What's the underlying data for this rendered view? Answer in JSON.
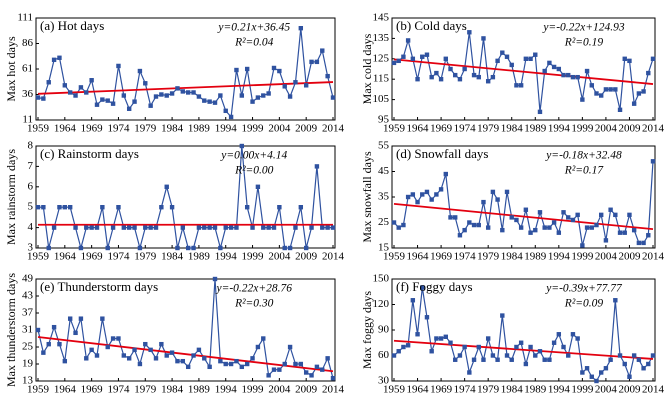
{
  "chart_data": [
    {
      "type": "line",
      "title": "(a) Hot days",
      "y_label": "Max hot days",
      "equation": "y=0.21x+36.45",
      "r2": "R²=0.04",
      "trend": {
        "slope": 0.21,
        "intercept": 36.45,
        "color": "#e3000f"
      },
      "color": "#2f52a0",
      "x": [
        1959,
        1960,
        1961,
        1962,
        1963,
        1964,
        1965,
        1966,
        1967,
        1968,
        1969,
        1970,
        1971,
        1972,
        1973,
        1974,
        1975,
        1976,
        1977,
        1978,
        1979,
        1980,
        1981,
        1982,
        1983,
        1984,
        1985,
        1986,
        1987,
        1988,
        1989,
        1990,
        1991,
        1992,
        1993,
        1994,
        1995,
        1996,
        1997,
        1998,
        1999,
        2000,
        2001,
        2002,
        2003,
        2004,
        2005,
        2006,
        2007,
        2008,
        2009,
        2010,
        2011,
        2012,
        2013,
        2014
      ],
      "values": [
        33,
        32,
        48,
        70,
        72,
        45,
        38,
        35,
        43,
        38,
        50,
        26,
        31,
        30,
        27,
        64,
        35,
        22,
        29,
        59,
        47,
        25,
        34,
        36,
        35,
        37,
        42,
        39,
        38,
        38,
        34,
        30,
        29,
        28,
        35,
        20,
        14,
        60,
        35,
        61,
        29,
        33,
        35,
        37,
        62,
        59,
        44,
        34,
        48,
        101,
        45,
        68,
        68,
        79,
        54,
        33
      ],
      "xlim": [
        1959,
        2014
      ],
      "xticks": [
        1959,
        1964,
        1969,
        1974,
        1979,
        1984,
        1989,
        1994,
        1999,
        2004,
        2009,
        2014
      ],
      "ylim": [
        11,
        111
      ],
      "yticks": [
        11,
        36,
        61,
        86,
        111
      ]
    },
    {
      "type": "line",
      "title": "(b) Cold days",
      "y_label": "Max cold days",
      "equation": "y=-0.22x+124.93",
      "r2": "R²=0.19",
      "trend": {
        "slope": -0.22,
        "intercept": 124.93,
        "color": "#e3000f"
      },
      "color": "#2f52a0",
      "x": [
        1959,
        1960,
        1961,
        1962,
        1963,
        1964,
        1965,
        1966,
        1967,
        1968,
        1969,
        1970,
        1971,
        1972,
        1973,
        1974,
        1975,
        1976,
        1977,
        1978,
        1979,
        1980,
        1981,
        1982,
        1983,
        1984,
        1985,
        1986,
        1987,
        1988,
        1989,
        1990,
        1991,
        1992,
        1993,
        1994,
        1995,
        1996,
        1997,
        1998,
        1999,
        2000,
        2001,
        2002,
        2003,
        2004,
        2005,
        2006,
        2007,
        2008,
        2009,
        2010,
        2011,
        2012,
        2013,
        2014
      ],
      "values": [
        123,
        124,
        126,
        134,
        125,
        115,
        126,
        127,
        116,
        118,
        115,
        125,
        120,
        117,
        115,
        120,
        138,
        117,
        116,
        135,
        114,
        116,
        124,
        128,
        126,
        122,
        112,
        112,
        125,
        125,
        127,
        99,
        119,
        123,
        121,
        120,
        117,
        117,
        116,
        116,
        105,
        119,
        112,
        108,
        107,
        110,
        110,
        110,
        100,
        125,
        124,
        103,
        108,
        109,
        118,
        125
      ],
      "xlim": [
        1959,
        2014
      ],
      "xticks": [
        1959,
        1964,
        1969,
        1974,
        1979,
        1984,
        1989,
        1994,
        1999,
        2004,
        2009,
        2014
      ],
      "ylim": [
        95,
        145
      ],
      "yticks": [
        95,
        105,
        115,
        125,
        135,
        145
      ]
    },
    {
      "type": "line",
      "title": "(c) Rainstorm days",
      "y_label": "Max rainstorm days",
      "equation": "y=0.00x+4.14",
      "r2": "R²=0.00",
      "trend": {
        "slope": 0.0,
        "intercept": 4.14,
        "color": "#e3000f"
      },
      "color": "#2f52a0",
      "x": [
        1959,
        1960,
        1961,
        1962,
        1963,
        1964,
        1965,
        1966,
        1967,
        1968,
        1969,
        1970,
        1971,
        1972,
        1973,
        1974,
        1975,
        1976,
        1977,
        1978,
        1979,
        1980,
        1981,
        1982,
        1983,
        1984,
        1985,
        1986,
        1987,
        1988,
        1989,
        1990,
        1991,
        1992,
        1993,
        1994,
        1995,
        1996,
        1997,
        1998,
        1999,
        2000,
        2001,
        2002,
        2003,
        2004,
        2005,
        2006,
        2007,
        2008,
        2009,
        2010,
        2011,
        2012,
        2013,
        2014
      ],
      "values": [
        5,
        5,
        3,
        4,
        5,
        5,
        5,
        4,
        3,
        4,
        4,
        4,
        5,
        3,
        4,
        5,
        4,
        4,
        4,
        3,
        4,
        4,
        4,
        5,
        6,
        5,
        3,
        4,
        3,
        3,
        4,
        4,
        4,
        4,
        3,
        4,
        4,
        4,
        8,
        5,
        4,
        6,
        4,
        4,
        4,
        5,
        3,
        3,
        4,
        5,
        3,
        4,
        7,
        4,
        4,
        4
      ],
      "xlim": [
        1959,
        2014
      ],
      "xticks": [
        1959,
        1964,
        1969,
        1974,
        1979,
        1984,
        1989,
        1994,
        1999,
        2004,
        2009,
        2014
      ],
      "ylim": [
        3,
        8
      ],
      "yticks": [
        3,
        4,
        5,
        6,
        7,
        8
      ]
    },
    {
      "type": "line",
      "title": "(d) Snowfall days",
      "y_label": "Max snowfall days",
      "equation": "y=-0.18x+32.48",
      "r2": "R²=0.17",
      "trend": {
        "slope": -0.18,
        "intercept": 32.48,
        "color": "#e3000f"
      },
      "color": "#2f52a0",
      "x": [
        1959,
        1960,
        1961,
        1962,
        1963,
        1964,
        1965,
        1966,
        1967,
        1968,
        1969,
        1970,
        1971,
        1972,
        1973,
        1974,
        1975,
        1976,
        1977,
        1978,
        1979,
        1980,
        1981,
        1982,
        1983,
        1984,
        1985,
        1986,
        1987,
        1988,
        1989,
        1990,
        1991,
        1992,
        1993,
        1994,
        1995,
        1996,
        1997,
        1998,
        1999,
        2000,
        2001,
        2002,
        2003,
        2004,
        2005,
        2006,
        2007,
        2008,
        2009,
        2010,
        2011,
        2012,
        2013,
        2014
      ],
      "values": [
        25,
        23,
        24,
        35,
        36,
        33,
        36,
        37,
        34,
        36,
        38,
        44,
        27,
        27,
        20,
        22,
        25,
        24,
        24,
        33,
        23,
        37,
        34,
        22,
        37,
        27,
        26,
        23,
        30,
        21,
        22,
        29,
        23,
        23,
        25,
        21,
        29,
        27,
        26,
        28,
        16,
        23,
        23,
        24,
        28,
        18,
        30,
        28,
        21,
        21,
        28,
        22,
        17,
        17,
        20,
        49
      ],
      "xlim": [
        1959,
        2014
      ],
      "xticks": [
        1959,
        1964,
        1969,
        1974,
        1979,
        1984,
        1989,
        1994,
        1999,
        2004,
        2009,
        2014
      ],
      "ylim": [
        15,
        55
      ],
      "yticks": [
        15,
        25,
        35,
        45,
        55
      ]
    },
    {
      "type": "line",
      "title": "(e) Thunderstorm days",
      "y_label": "Max thunderstorm days",
      "equation": "y=-0.22x+28.76",
      "r2": "R²=0.30",
      "trend": {
        "slope": -0.22,
        "intercept": 28.76,
        "color": "#e3000f"
      },
      "color": "#2f52a0",
      "x": [
        1959,
        1960,
        1961,
        1962,
        1963,
        1964,
        1965,
        1966,
        1967,
        1968,
        1969,
        1970,
        1971,
        1972,
        1973,
        1974,
        1975,
        1976,
        1977,
        1978,
        1979,
        1980,
        1981,
        1982,
        1983,
        1984,
        1985,
        1986,
        1987,
        1988,
        1989,
        1990,
        1991,
        1992,
        1993,
        1994,
        1995,
        1996,
        1997,
        1998,
        1999,
        2000,
        2001,
        2002,
        2003,
        2004,
        2005,
        2006,
        2007,
        2008,
        2009,
        2010,
        2011,
        2012,
        2013,
        2014
      ],
      "values": [
        31,
        23,
        26,
        32,
        26,
        20,
        35,
        30,
        35,
        21,
        24,
        22,
        35,
        25,
        28,
        28,
        22,
        21,
        24,
        19,
        26,
        24,
        21,
        26,
        22,
        23,
        20,
        20,
        18,
        22,
        24,
        21,
        18,
        49,
        20,
        19,
        19,
        20,
        18,
        19,
        21,
        25,
        28,
        15,
        17,
        17,
        19,
        25,
        19,
        19,
        16,
        15,
        18,
        17,
        21,
        14
      ],
      "xlim": [
        1959,
        2014
      ],
      "xticks": [
        1959,
        1964,
        1969,
        1974,
        1979,
        1984,
        1989,
        1994,
        1999,
        2004,
        2009,
        2014
      ],
      "ylim": [
        13,
        49
      ],
      "yticks": [
        13,
        19,
        25,
        31,
        37,
        43,
        49
      ]
    },
    {
      "type": "line",
      "title": "(f) Foggy days",
      "y_label": "Max foggy days",
      "equation": "y=-0.39x+77.77",
      "r2": "R²=0.09",
      "trend": {
        "slope": -0.39,
        "intercept": 77.77,
        "color": "#e3000f"
      },
      "color": "#2f52a0",
      "x": [
        1959,
        1960,
        1961,
        1962,
        1963,
        1964,
        1965,
        1966,
        1967,
        1968,
        1969,
        1970,
        1971,
        1972,
        1973,
        1974,
        1975,
        1976,
        1977,
        1978,
        1979,
        1980,
        1981,
        1982,
        1983,
        1984,
        1985,
        1986,
        1987,
        1988,
        1989,
        1990,
        1991,
        1992,
        1993,
        1994,
        1995,
        1996,
        1997,
        1998,
        1999,
        2000,
        2001,
        2002,
        2003,
        2004,
        2005,
        2006,
        2007,
        2008,
        2009,
        2010,
        2011,
        2012,
        2013,
        2014
      ],
      "values": [
        60,
        65,
        70,
        72,
        125,
        85,
        140,
        105,
        65,
        80,
        80,
        82,
        75,
        55,
        60,
        70,
        40,
        55,
        70,
        55,
        80,
        60,
        55,
        107,
        60,
        55,
        70,
        75,
        50,
        70,
        60,
        65,
        55,
        55,
        75,
        85,
        70,
        60,
        85,
        80,
        40,
        45,
        35,
        30,
        40,
        45,
        55,
        125,
        60,
        50,
        35,
        60,
        55,
        45,
        50,
        60
      ],
      "xlim": [
        1959,
        2014
      ],
      "xticks": [
        1959,
        1964,
        1969,
        1974,
        1979,
        1984,
        1989,
        1994,
        1999,
        2004,
        2009,
        2014
      ],
      "ylim": [
        30,
        150
      ],
      "yticks": [
        30,
        60,
        90,
        120,
        150
      ]
    }
  ]
}
